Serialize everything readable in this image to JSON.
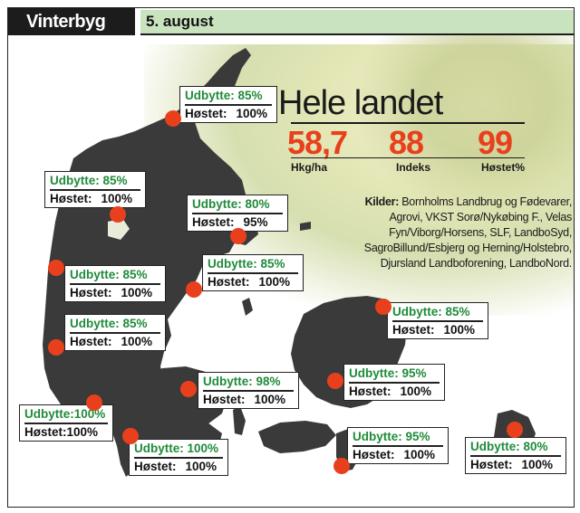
{
  "header": {
    "crop": "Vinterbyg",
    "date": "5. august"
  },
  "national": {
    "title": "Hele landet",
    "yield": "58,7",
    "yield_unit": "Hkg/ha",
    "index": "88",
    "index_label": "Indeks",
    "harvested": "99",
    "harvested_label": "Høstet%"
  },
  "sources": {
    "label": "Kilder:",
    "text": "Bornholms Landbrug og Fødevarer, Agrovi, VKST Sorø/Nykøbing F., Velas Fyn/Viborg/Horsens, SLF, LandboSyd, SagroBillund/Esbjerg og Herning/Holstebro, Djursland Landboforening, LandboNord."
  },
  "colors": {
    "accent": "#e8401c",
    "yield_text": "#1f8b3a",
    "date_bar": "#c9e3bf",
    "land": "#3a3a3a"
  },
  "regions": [
    {
      "yield_label": "Udbytte: 85%",
      "harvest_label": "Høstet:",
      "harvest_value": "100%"
    },
    {
      "yield_label": "Udbytte: 85%",
      "harvest_label": "Høstet:",
      "harvest_value": "100%"
    },
    {
      "yield_label": "Udbytte: 80%",
      "harvest_label": "Høstet:",
      "harvest_value": "95%"
    },
    {
      "yield_label": "Udbytte: 85%",
      "harvest_label": "Høstet:",
      "harvest_value": "100%"
    },
    {
      "yield_label": "Udbytte: 85%",
      "harvest_label": "Høstet:",
      "harvest_value": "100%"
    },
    {
      "yield_label": "Udbytte: 85%",
      "harvest_label": "Høstet:",
      "harvest_value": "100%"
    },
    {
      "yield_label": "Udbytte: 85%",
      "harvest_label": "Høstet:",
      "harvest_value": "100%"
    },
    {
      "yield_label": "Udbytte: 98%",
      "harvest_label": "Høstet:",
      "harvest_value": "100%"
    },
    {
      "yield_label": "Udbytte: 95%",
      "harvest_label": "Høstet:",
      "harvest_value": "100%"
    },
    {
      "yield_label": "Udbytte:100%",
      "harvest_label": "Høstet:",
      "harvest_value": "100%"
    },
    {
      "yield_label": "Udbytte: 100%",
      "harvest_label": "Høstet:",
      "harvest_value": "100%"
    },
    {
      "yield_label": "Udbytte: 95%",
      "harvest_label": "Høstet:",
      "harvest_value": "100%"
    },
    {
      "yield_label": "Udbytte: 80%",
      "harvest_label": "Høstet:",
      "harvest_value": "100%"
    }
  ]
}
